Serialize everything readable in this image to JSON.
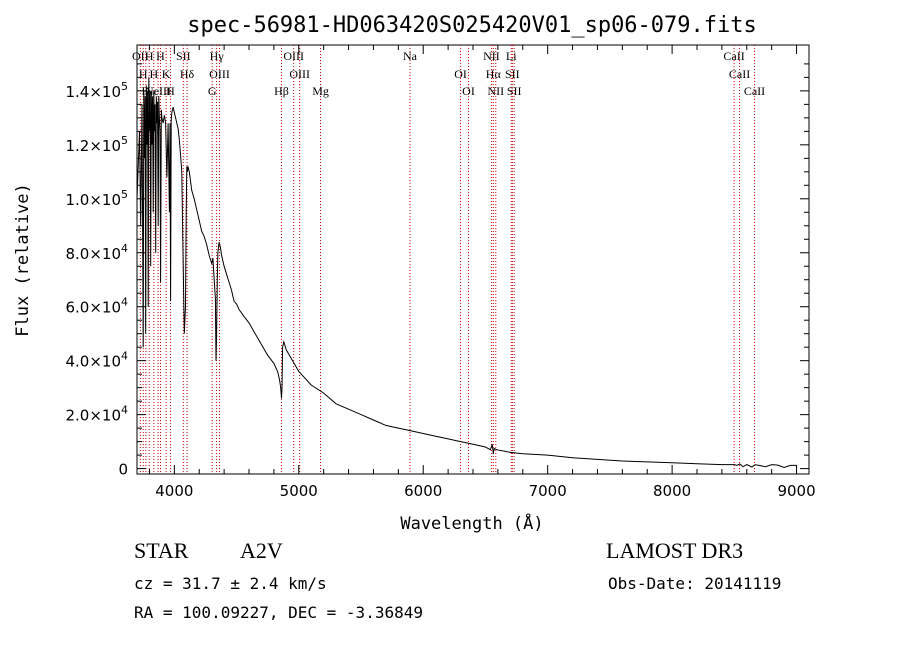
{
  "chart_data": {
    "type": "line",
    "title": "spec-56981-HD063420S025420V01_sp06-079.fits",
    "xlabel": "Wavelength (Å)",
    "ylabel": "Flux (relative)",
    "xlim": [
      3700,
      9100
    ],
    "ylim": [
      -2000,
      157000
    ],
    "xticks": [
      4000,
      5000,
      6000,
      7000,
      8000,
      9000
    ],
    "xtick_labels": [
      "4000",
      "5000",
      "6000",
      "7000",
      "8000",
      "9000"
    ],
    "yticks": [
      {
        "value": 0,
        "mant": "0",
        "exp": ""
      },
      {
        "value": 20000,
        "mant": "2.0×10",
        "exp": "4"
      },
      {
        "value": 40000,
        "mant": "4.0×10",
        "exp": "4"
      },
      {
        "value": 60000,
        "mant": "6.0×10",
        "exp": "4"
      },
      {
        "value": 80000,
        "mant": "8.0×10",
        "exp": "4"
      },
      {
        "value": 100000,
        "mant": "1.0×10",
        "exp": "5"
      },
      {
        "value": 120000,
        "mant": "1.2×10",
        "exp": "5"
      },
      {
        "value": 140000,
        "mant": "1.4×10",
        "exp": "5"
      }
    ],
    "series": [
      {
        "name": "spectrum",
        "x": [
          3700,
          3720,
          3730,
          3740,
          3750,
          3755,
          3760,
          3765,
          3770,
          3775,
          3780,
          3785,
          3790,
          3795,
          3800,
          3805,
          3810,
          3815,
          3820,
          3825,
          3830,
          3835,
          3840,
          3845,
          3850,
          3855,
          3860,
          3865,
          3870,
          3875,
          3880,
          3885,
          3890,
          3895,
          3900,
          3910,
          3920,
          3930,
          3940,
          3950,
          3960,
          3965,
          3970,
          3975,
          3980,
          3990,
          4000,
          4010,
          4020,
          4030,
          4040,
          4050,
          4060,
          4070,
          4080,
          4090,
          4095,
          4100,
          4105,
          4110,
          4115,
          4120,
          4140,
          4160,
          4180,
          4200,
          4220,
          4240,
          4260,
          4280,
          4300,
          4310,
          4320,
          4330,
          4335,
          4340,
          4345,
          4350,
          4360,
          4370,
          4380,
          4400,
          4420,
          4440,
          4460,
          4470,
          4480,
          4500,
          4520,
          4550,
          4600,
          4650,
          4700,
          4750,
          4800,
          4830,
          4845,
          4855,
          4861,
          4865,
          4870,
          4880,
          4900,
          4950,
          5000,
          5100,
          5200,
          5300,
          5400,
          5500,
          5600,
          5700,
          5800,
          5900,
          6000,
          6100,
          6200,
          6300,
          6400,
          6500,
          6540,
          6555,
          6563,
          6570,
          6590,
          6650,
          6700,
          6800,
          7000,
          7200,
          7400,
          7600,
          7800,
          8000,
          8200,
          8400,
          8500,
          8520,
          8545,
          8570,
          8600,
          8640,
          8665,
          8700,
          8750,
          8800,
          8850,
          8900,
          8950,
          9000
        ],
        "y": [
          100000,
          125000,
          90000,
          135000,
          45000,
          140000,
          115000,
          138000,
          50000,
          142000,
          120000,
          140000,
          60000,
          145000,
          125000,
          140000,
          75000,
          140000,
          120000,
          138000,
          95000,
          140000,
          125000,
          135000,
          80000,
          138000,
          128000,
          136000,
          90000,
          138000,
          130000,
          125000,
          69000,
          133000,
          130000,
          128000,
          131000,
          128000,
          108000,
          128000,
          95000,
          128000,
          62000,
          129000,
          132000,
          134000,
          132000,
          130000,
          128000,
          126000,
          122000,
          116000,
          110000,
          80000,
          50000,
          60000,
          95000,
          112000,
          110000,
          112000,
          111000,
          110000,
          103000,
          100000,
          96000,
          92000,
          88000,
          86000,
          83000,
          79000,
          76000,
          78000,
          70000,
          63000,
          40000,
          50000,
          70000,
          80000,
          84000,
          82000,
          79000,
          75000,
          72000,
          69000,
          66000,
          64000,
          62000,
          61000,
          59000,
          57000,
          54000,
          50000,
          46000,
          42000,
          39000,
          36000,
          33000,
          30000,
          26000,
          30000,
          45000,
          47000,
          44000,
          40000,
          36000,
          31000,
          28000,
          24000,
          22000,
          20000,
          18000,
          16000,
          15000,
          14000,
          13000,
          12000,
          11000,
          10000,
          9000,
          8000,
          7000,
          9000,
          5500,
          7500,
          7000,
          6500,
          6000,
          5500,
          5000,
          4000,
          3400,
          2800,
          2500,
          2200,
          1800,
          1500,
          1500,
          1200,
          1700,
          700,
          1500,
          600,
          1400,
          1200,
          700,
          1500,
          1300,
          400,
          1200,
          1200
        ]
      }
    ],
    "lines": [
      {
        "x": 3727,
        "label": "OII"
      },
      {
        "x": 3750,
        "label": "H"
      },
      {
        "x": 3771,
        "label": "H"
      },
      {
        "x": 3798,
        "label": "H"
      },
      {
        "x": 3835,
        "label": "H"
      },
      {
        "x": 3869,
        "label": "NeIII"
      },
      {
        "x": 3889,
        "label": "H"
      },
      {
        "x": 3934,
        "label": "K"
      },
      {
        "x": 3969,
        "label": "H"
      },
      {
        "x": 4072,
        "label": "SII"
      },
      {
        "x": 4102,
        "label": "Hδ"
      },
      {
        "x": 4304,
        "label": "G"
      },
      {
        "x": 4340,
        "label": "Hγ"
      },
      {
        "x": 4363,
        "label": "OIII"
      },
      {
        "x": 4861,
        "label": "Hβ"
      },
      {
        "x": 4959,
        "label": "OIII"
      },
      {
        "x": 5007,
        "label": "OIII"
      },
      {
        "x": 5175,
        "label": "Mg"
      },
      {
        "x": 5894,
        "label": "Na"
      },
      {
        "x": 6300,
        "label": "OI"
      },
      {
        "x": 6364,
        "label": "OI"
      },
      {
        "x": 6548,
        "label": "NII"
      },
      {
        "x": 6563,
        "label": "Hα"
      },
      {
        "x": 6583,
        "label": "NII"
      },
      {
        "x": 6707,
        "label": "Li"
      },
      {
        "x": 6716,
        "label": "SII"
      },
      {
        "x": 6731,
        "label": "SII"
      },
      {
        "x": 8498,
        "label": "CaII"
      },
      {
        "x": 8542,
        "label": "CaII"
      },
      {
        "x": 8662,
        "label": "CaII"
      }
    ]
  },
  "info": {
    "object_class": "STAR",
    "subclass": "A2V",
    "survey": "LAMOST DR3",
    "redshift": "cz = 31.7 ± 2.4 km/s",
    "obs_date": "Obs-Date: 20141119",
    "coords": "RA = 100.09227, DEC =  -3.36849"
  }
}
